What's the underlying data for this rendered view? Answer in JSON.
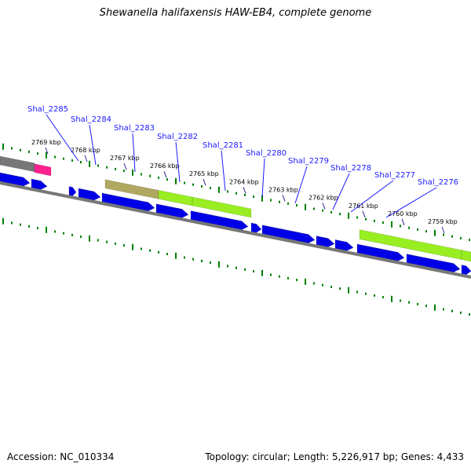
{
  "title": "Shewanella halifaxensis HAW-EB4, complete genome",
  "footer": {
    "accession": "Accession: NC_010334",
    "info": "Topology: circular; Length: 5,226,917 bp; Genes: 4,433"
  },
  "colors": {
    "gene_forward": "#0000e6",
    "gene_reverse": "#0000e6",
    "rna_green": "#99ee22",
    "rna_olive": "#b0a860",
    "pink": "#ff2090",
    "gray": "#777777",
    "tick": "#008000",
    "label": "#1a1aff"
  },
  "kbp_ticks": [
    {
      "label": "2769 kbp"
    },
    {
      "label": "2768 kbp"
    },
    {
      "label": "2767 kbp"
    },
    {
      "label": "2766 kbp"
    },
    {
      "label": "2765 kbp"
    },
    {
      "label": "2764 kbp"
    },
    {
      "label": "2763 kbp"
    },
    {
      "label": "2762 kbp"
    },
    {
      "label": "2761 kbp"
    },
    {
      "label": "2760 kbp"
    },
    {
      "label": "2759 kbp"
    }
  ],
  "gene_labels": [
    {
      "label": "Shal_2285"
    },
    {
      "label": "Shal_2284"
    },
    {
      "label": "Shal_2283"
    },
    {
      "label": "Shal_2282"
    },
    {
      "label": "Shal_2281"
    },
    {
      "label": "Shal_2280"
    },
    {
      "label": "Shal_2279"
    },
    {
      "label": "Shal_2278"
    },
    {
      "label": "Shal_2277"
    },
    {
      "label": "Shal_2276"
    }
  ]
}
